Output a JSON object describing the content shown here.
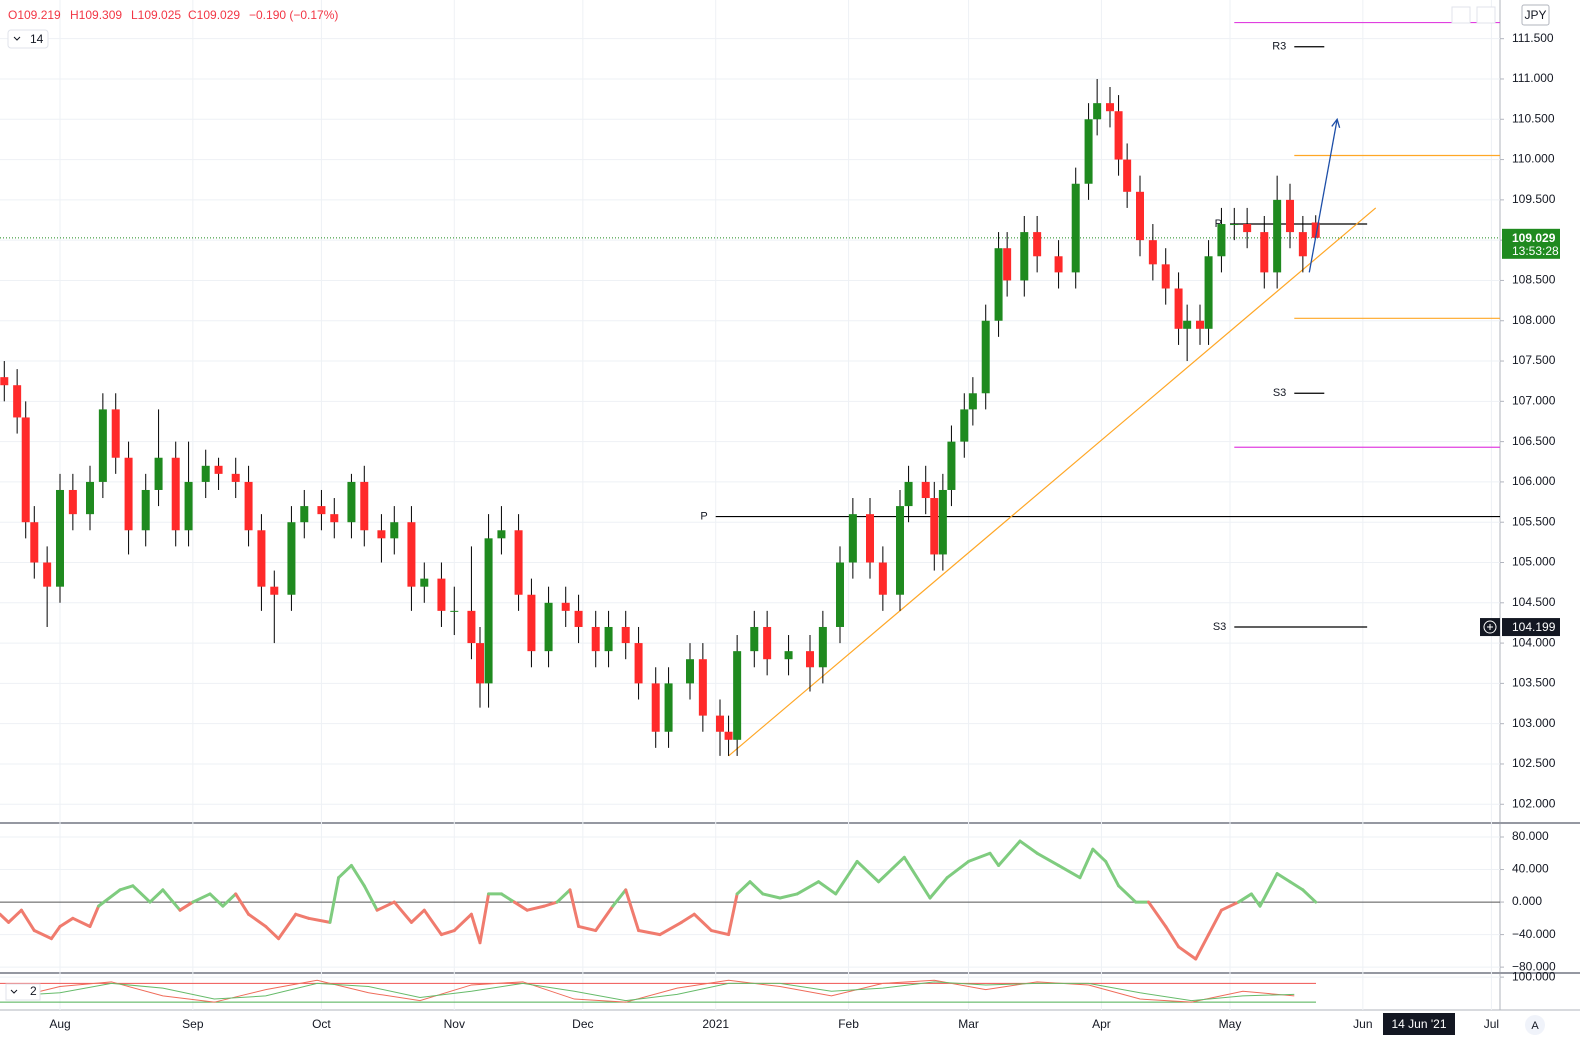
{
  "header": {
    "open": "O109.219",
    "high": "H109.309",
    "low": "L109.025",
    "close": "C109.029",
    "change": "−0.190 (−0.17%)",
    "period": "14",
    "currency": "JPY",
    "auto": "A"
  },
  "chart_data": [
    {
      "type": "candlestick",
      "x": [
        -13,
        -10,
        -8,
        -6,
        -3,
        0,
        3,
        7,
        10,
        13,
        16,
        20,
        23,
        27,
        30,
        34,
        37,
        41,
        44,
        47,
        50,
        54,
        57,
        61,
        64,
        68,
        71,
        75,
        78,
        82,
        85,
        89,
        92,
        96,
        98,
        100,
        103,
        107,
        110,
        114,
        118,
        121,
        125,
        128,
        132,
        135,
        139,
        142,
        147,
        150,
        154,
        156,
        158,
        162,
        165,
        170,
        175,
        178,
        182,
        185,
        189,
        192,
        196,
        198,
        202,
        204,
        206,
        208,
        211,
        213,
        216,
        219,
        221,
        225,
        228,
        233,
        237,
        240,
        242,
        245,
        247,
        249,
        252,
        255,
        258,
        261,
        263,
        266,
        268,
        271,
        274,
        277,
        281,
        284,
        287,
        290,
        293
      ],
      "open": [
        107.3,
        107.2,
        106.8,
        105.5,
        105.0,
        104.7,
        105.9,
        105.6,
        106.0,
        106.9,
        106.3,
        105.4,
        105.9,
        106.3,
        105.4,
        106.0,
        106.2,
        106.1,
        106.0,
        105.4,
        104.7,
        104.6,
        105.5,
        105.7,
        105.6,
        105.5,
        106.0,
        105.4,
        105.3,
        105.5,
        104.7,
        104.8,
        104.4,
        104.4,
        104.0,
        103.5,
        105.3,
        105.4,
        104.6,
        103.9,
        104.5,
        104.4,
        104.2,
        103.9,
        104.2,
        104.0,
        103.5,
        102.9,
        103.5,
        103.8,
        103.1,
        102.9,
        102.8,
        103.9,
        104.2,
        103.8,
        103.9,
        103.7,
        104.2,
        105.0,
        105.6,
        105.0,
        104.6,
        105.7,
        106.0,
        105.8,
        105.1,
        105.9,
        106.5,
        106.9,
        107.1,
        108.0,
        108.9,
        108.5,
        109.1,
        108.8,
        108.6,
        109.7,
        110.5,
        110.7,
        110.6,
        110.0,
        109.6,
        109.0,
        108.7,
        108.4,
        107.9,
        108.0,
        107.9,
        108.8,
        109.2,
        109.2,
        109.1,
        108.6,
        109.5,
        109.1,
        109.219
      ],
      "high": [
        107.5,
        107.4,
        107.0,
        105.7,
        105.2,
        106.1,
        106.1,
        106.2,
        107.1,
        107.1,
        106.5,
        106.1,
        106.9,
        106.5,
        106.5,
        106.4,
        106.3,
        106.3,
        106.2,
        105.6,
        104.9,
        105.7,
        105.9,
        105.9,
        105.8,
        106.1,
        106.2,
        105.6,
        105.7,
        105.7,
        105.0,
        105.0,
        104.7,
        105.2,
        104.2,
        105.6,
        105.7,
        105.6,
        104.8,
        104.7,
        104.7,
        104.6,
        104.4,
        104.4,
        104.4,
        104.2,
        103.7,
        103.7,
        104.0,
        104.0,
        103.3,
        103.1,
        104.1,
        104.4,
        104.4,
        104.1,
        104.1,
        104.4,
        105.2,
        105.8,
        105.8,
        105.2,
        105.9,
        106.2,
        106.2,
        106.0,
        106.1,
        106.7,
        107.1,
        107.3,
        108.2,
        109.1,
        109.1,
        109.3,
        109.3,
        109.0,
        109.9,
        110.7,
        111.0,
        110.9,
        110.8,
        110.2,
        109.8,
        109.2,
        108.9,
        108.6,
        108.2,
        108.2,
        109.0,
        109.4,
        109.4,
        109.4,
        109.3,
        109.8,
        109.7,
        109.3,
        109.309
      ],
      "low": [
        107.0,
        106.6,
        105.3,
        104.8,
        104.2,
        104.5,
        105.4,
        105.4,
        105.8,
        106.1,
        105.1,
        105.2,
        105.7,
        105.2,
        105.2,
        105.8,
        105.9,
        105.8,
        105.2,
        104.4,
        104.0,
        104.4,
        105.3,
        105.4,
        105.3,
        105.3,
        105.2,
        105.0,
        105.1,
        104.4,
        104.5,
        104.2,
        104.1,
        103.8,
        103.2,
        103.2,
        105.1,
        104.4,
        103.7,
        103.7,
        104.2,
        104.0,
        103.7,
        103.7,
        103.8,
        103.3,
        102.7,
        102.7,
        103.3,
        102.9,
        102.6,
        102.6,
        102.6,
        103.7,
        103.6,
        103.6,
        103.4,
        103.5,
        104.0,
        104.8,
        104.8,
        104.4,
        104.4,
        105.5,
        105.6,
        104.9,
        104.9,
        105.7,
        106.3,
        106.7,
        106.9,
        107.8,
        108.3,
        108.3,
        108.6,
        108.4,
        108.4,
        109.5,
        110.3,
        110.4,
        109.8,
        109.4,
        108.8,
        108.5,
        108.2,
        107.7,
        107.5,
        107.7,
        107.7,
        108.6,
        109.0,
        108.9,
        108.4,
        108.4,
        108.9,
        108.6,
        109.025
      ],
      "close": [
        107.2,
        106.8,
        105.5,
        105.0,
        104.7,
        105.9,
        105.6,
        106.0,
        106.9,
        106.3,
        105.4,
        105.9,
        106.3,
        105.4,
        106.0,
        106.2,
        106.1,
        106.0,
        105.4,
        104.7,
        104.6,
        105.5,
        105.7,
        105.6,
        105.5,
        106.0,
        105.4,
        105.3,
        105.5,
        104.7,
        104.8,
        104.4,
        104.4,
        104.0,
        103.5,
        105.3,
        105.4,
        104.6,
        103.9,
        104.5,
        104.4,
        104.2,
        103.9,
        104.2,
        104.0,
        103.5,
        102.9,
        103.5,
        103.8,
        103.1,
        102.9,
        102.8,
        103.9,
        104.2,
        103.8,
        103.9,
        103.7,
        104.2,
        105.0,
        105.6,
        105.0,
        104.6,
        105.7,
        106.0,
        105.8,
        105.1,
        105.9,
        106.5,
        106.9,
        107.1,
        108.0,
        108.9,
        108.5,
        109.1,
        108.8,
        108.6,
        109.7,
        110.5,
        110.7,
        110.6,
        110.0,
        109.6,
        109.0,
        108.7,
        108.4,
        107.9,
        108.0,
        107.9,
        108.8,
        109.2,
        109.2,
        109.1,
        108.6,
        109.5,
        109.1,
        108.8,
        109.029
      ],
      "up_color": "#1f8a1f",
      "down_color": "#ff2a2a",
      "xlim": [
        -14,
        336
      ],
      "ylim": [
        101.78,
        111.98
      ],
      "xticks": [
        {
          "value": 0,
          "label": "Aug"
        },
        {
          "value": 31,
          "label": "Sep"
        },
        {
          "value": 61,
          "label": "Oct"
        },
        {
          "value": 92,
          "label": "Nov"
        },
        {
          "value": 122,
          "label": "Dec"
        },
        {
          "value": 153,
          "label": "2021"
        },
        {
          "value": 184,
          "label": "Feb"
        },
        {
          "value": 212,
          "label": "Mar"
        },
        {
          "value": 243,
          "label": "Apr"
        },
        {
          "value": 273,
          "label": "May"
        },
        {
          "value": 304,
          "label": "Jun"
        },
        {
          "value": 334,
          "label": "Jul"
        }
      ],
      "yticks": [
        {
          "value": 102,
          "label": "102.000"
        },
        {
          "value": 102.5,
          "label": "102.500"
        },
        {
          "value": 103,
          "label": "103.000"
        },
        {
          "value": 103.5,
          "label": "103.500"
        },
        {
          "value": 104,
          "label": "104.000"
        },
        {
          "value": 104.5,
          "label": "104.500"
        },
        {
          "value": 105,
          "label": "105.000"
        },
        {
          "value": 105.5,
          "label": "105.500"
        },
        {
          "value": 106,
          "label": "106.000"
        },
        {
          "value": 106.5,
          "label": "106.500"
        },
        {
          "value": 107,
          "label": "107.000"
        },
        {
          "value": 107.5,
          "label": "107.500"
        },
        {
          "value": 108,
          "label": "108.000"
        },
        {
          "value": 108.5,
          "label": "108.500"
        },
        {
          "value": 109,
          "label": "109.000"
        },
        {
          "value": 109.5,
          "label": "109.500"
        },
        {
          "value": 110,
          "label": "110.000"
        },
        {
          "value": 110.5,
          "label": "110.500"
        },
        {
          "value": 111,
          "label": "111.000"
        },
        {
          "value": 111.5,
          "label": "111.500"
        }
      ],
      "grid": true,
      "last_price": {
        "value": 109.029,
        "label": "109.029",
        "countdown": "13:53:28",
        "color": "#1f8a1f"
      },
      "crosshair": {
        "value": 104.199,
        "label": "104.199",
        "x_label": "14 Jun '21"
      },
      "levels": [
        {
          "value": 111.4,
          "label": "R3",
          "x": [
            288,
            295
          ],
          "color": "#000000"
        },
        {
          "value": 107.1,
          "label": "S3",
          "x": [
            288,
            295
          ],
          "color": "#000000"
        },
        {
          "value": 105.57,
          "label": "P",
          "x": [
            153,
            336
          ],
          "color": "#000000"
        },
        {
          "value": 104.2,
          "label": "S3",
          "x": [
            274,
            305
          ],
          "color": "#000000"
        },
        {
          "value": 109.2,
          "label": "P",
          "x": [
            273,
            305
          ],
          "color": "#000000"
        },
        {
          "value": 111.7,
          "x": [
            274,
            336
          ],
          "color": "#e040e0"
        },
        {
          "value": 106.43,
          "x": [
            274,
            336
          ],
          "color": "#e040e0"
        },
        {
          "value": 110.05,
          "x": [
            288,
            336
          ],
          "color": "#ffa726"
        },
        {
          "value": 108.03,
          "x": [
            288,
            336
          ],
          "color": "#ffa726"
        }
      ],
      "trendline": {
        "x": [
          156,
          307
        ],
        "y": [
          102.6,
          109.4
        ],
        "color": "#ffa726"
      },
      "arrow": {
        "x": [
          291.5,
          298
        ],
        "y": [
          108.6,
          110.5
        ],
        "color": "#1e4fa8"
      }
    },
    {
      "type": "line",
      "x": [
        -14,
        -12,
        -9,
        -6,
        -2,
        0,
        3,
        7,
        9,
        14,
        17,
        21,
        24,
        28,
        31,
        35,
        38,
        41,
        44,
        48,
        51,
        55,
        58,
        63,
        65,
        68,
        71,
        74,
        78,
        82,
        85,
        89,
        92,
        96,
        98,
        100,
        103,
        106,
        109,
        113,
        116,
        119,
        121,
        125,
        129,
        132,
        135,
        140,
        145,
        148,
        152,
        156,
        158,
        161,
        164,
        168,
        172,
        177,
        181,
        186,
        191,
        197,
        203,
        207,
        212,
        217,
        219,
        224,
        228,
        233,
        238,
        241,
        244,
        247,
        251,
        254,
        258,
        261,
        265,
        268,
        271,
        275,
        278,
        280,
        284,
        287,
        290,
        293
      ],
      "values": [
        -15,
        -25,
        -10,
        -35,
        -45,
        -30,
        -20,
        -30,
        -5,
        15,
        20,
        0,
        15,
        -10,
        0,
        10,
        -5,
        10,
        -15,
        -30,
        -45,
        -15,
        -20,
        -25,
        30,
        45,
        20,
        -10,
        0,
        -25,
        -10,
        -40,
        -35,
        -15,
        -50,
        10,
        10,
        0,
        -10,
        -5,
        0,
        15,
        -30,
        -35,
        -5,
        15,
        -35,
        -40,
        -25,
        -15,
        -35,
        -40,
        10,
        25,
        10,
        5,
        10,
        25,
        10,
        50,
        25,
        55,
        5,
        30,
        50,
        60,
        45,
        75,
        60,
        45,
        30,
        65,
        50,
        20,
        0,
        0,
        -30,
        -55,
        -70,
        -40,
        -10,
        0,
        10,
        -5,
        35,
        25,
        15,
        0
      ],
      "pos_color": "#7fcc7f",
      "neg_color": "#f07b6e",
      "zero_line": true,
      "ylim": [
        -86,
        96
      ],
      "yticks": [
        {
          "value": 80,
          "label": "80.000"
        },
        {
          "value": 40,
          "label": "40.000"
        },
        {
          "value": 0,
          "label": "0.000"
        },
        {
          "value": -40,
          "label": "−40.000"
        },
        {
          "value": -80,
          "label": "−80.000"
        }
      ]
    },
    {
      "type": "line",
      "label": "2",
      "x": [
        -12,
        0,
        12,
        24,
        36,
        48,
        60,
        72,
        84,
        96,
        108,
        120,
        132,
        144,
        156,
        168,
        180,
        192,
        204,
        216,
        228,
        240,
        252,
        264,
        276,
        288
      ],
      "series": [
        {
          "color": "#ef6c5a",
          "values": [
            30,
            70,
            85,
            40,
            20,
            60,
            90,
            50,
            25,
            75,
            85,
            30,
            20,
            65,
            90,
            70,
            40,
            80,
            90,
            60,
            85,
            75,
            30,
            20,
            55,
            40
          ]
        },
        {
          "color": "#66bb6a",
          "values": [
            40,
            50,
            80,
            65,
            30,
            40,
            80,
            70,
            35,
            55,
            80,
            55,
            25,
            45,
            80,
            80,
            55,
            65,
            85,
            75,
            80,
            80,
            50,
            25,
            40,
            45
          ]
        }
      ],
      "bands": [
        {
          "value": 80,
          "color": "#ef5350"
        },
        {
          "value": 20,
          "color": "#4caf50"
        }
      ],
      "ylim": [
        -5,
        110
      ],
      "yticks": [
        {
          "value": 100,
          "label": "100.000"
        }
      ]
    }
  ]
}
